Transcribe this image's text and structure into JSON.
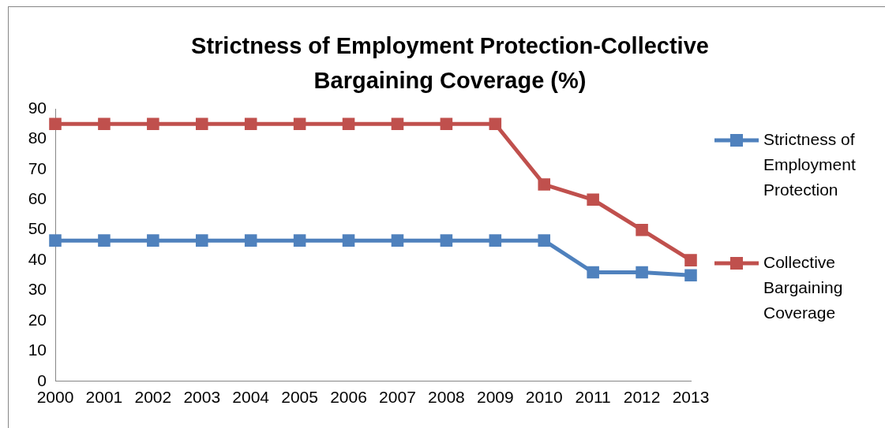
{
  "chart_data": {
    "type": "line",
    "title": "Strictness of Employment Protection-Collective Bargaining Coverage (%)",
    "categories": [
      "2000",
      "2001",
      "2002",
      "2003",
      "2004",
      "2005",
      "2006",
      "2007",
      "2008",
      "2009",
      "2010",
      "2011",
      "2012",
      "2013"
    ],
    "series": [
      {
        "name": "Strictness of Employment Protection",
        "color": "#4f81bd",
        "values": [
          46.5,
          46.5,
          46.5,
          46.5,
          46.5,
          46.5,
          46.5,
          46.5,
          46.5,
          46.5,
          46.5,
          36,
          36,
          35
        ]
      },
      {
        "name": "Collective Bargaining Coverage",
        "color": "#c0504d",
        "values": [
          85,
          85,
          85,
          85,
          85,
          85,
          85,
          85,
          85,
          85,
          65,
          60,
          50,
          40
        ]
      }
    ],
    "ylim": [
      0,
      90
    ],
    "yticks": [
      0,
      10,
      20,
      30,
      40,
      50,
      60,
      70,
      80,
      90
    ],
    "grid": false,
    "legend": "right",
    "marker": "square",
    "line_style": "solid"
  }
}
